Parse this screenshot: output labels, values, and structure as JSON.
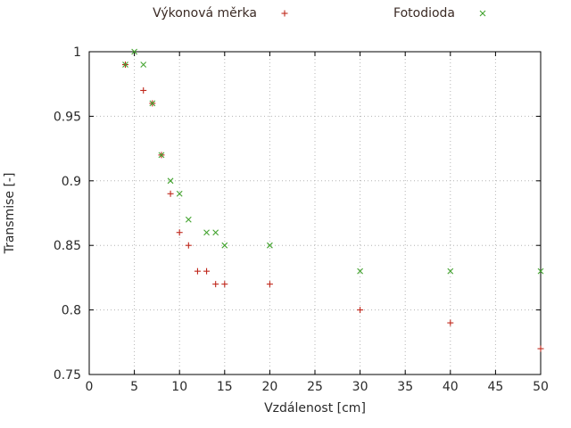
{
  "chart_data": {
    "type": "scatter",
    "title": "",
    "xlabel": "Vzdálenost [cm]",
    "ylabel": "Transmise [-]",
    "xlim": [
      0,
      50
    ],
    "ylim": [
      0.75,
      1.0
    ],
    "xticks": [
      0,
      5,
      10,
      15,
      20,
      25,
      30,
      35,
      40,
      45,
      50
    ],
    "yticks": [
      0.75,
      0.8,
      0.85,
      0.9,
      0.95,
      1
    ],
    "grid": true,
    "grid_style": "dotted",
    "legend_position": "top-outside",
    "series": [
      {
        "name": "Výkonová měrka",
        "marker": "plus",
        "color": "#c0281c",
        "points": [
          [
            4,
            0.99
          ],
          [
            6,
            0.97
          ],
          [
            7,
            0.96
          ],
          [
            8,
            0.92
          ],
          [
            9,
            0.89
          ],
          [
            10,
            0.86
          ],
          [
            11,
            0.85
          ],
          [
            12,
            0.83
          ],
          [
            13,
            0.83
          ],
          [
            14,
            0.82
          ],
          [
            15,
            0.82
          ],
          [
            20,
            0.82
          ],
          [
            30,
            0.8
          ],
          [
            40,
            0.79
          ],
          [
            50,
            0.77
          ]
        ]
      },
      {
        "name": "Fotodioda",
        "marker": "cross",
        "color": "#43a32f",
        "points": [
          [
            4,
            0.99
          ],
          [
            5,
            1.0
          ],
          [
            6,
            0.99
          ],
          [
            7,
            0.96
          ],
          [
            8,
            0.92
          ],
          [
            9,
            0.9
          ],
          [
            10,
            0.89
          ],
          [
            11,
            0.87
          ],
          [
            13,
            0.86
          ],
          [
            14,
            0.86
          ],
          [
            15,
            0.85
          ],
          [
            20,
            0.85
          ],
          [
            30,
            0.83
          ],
          [
            40,
            0.83
          ],
          [
            50,
            0.83
          ]
        ]
      }
    ]
  }
}
